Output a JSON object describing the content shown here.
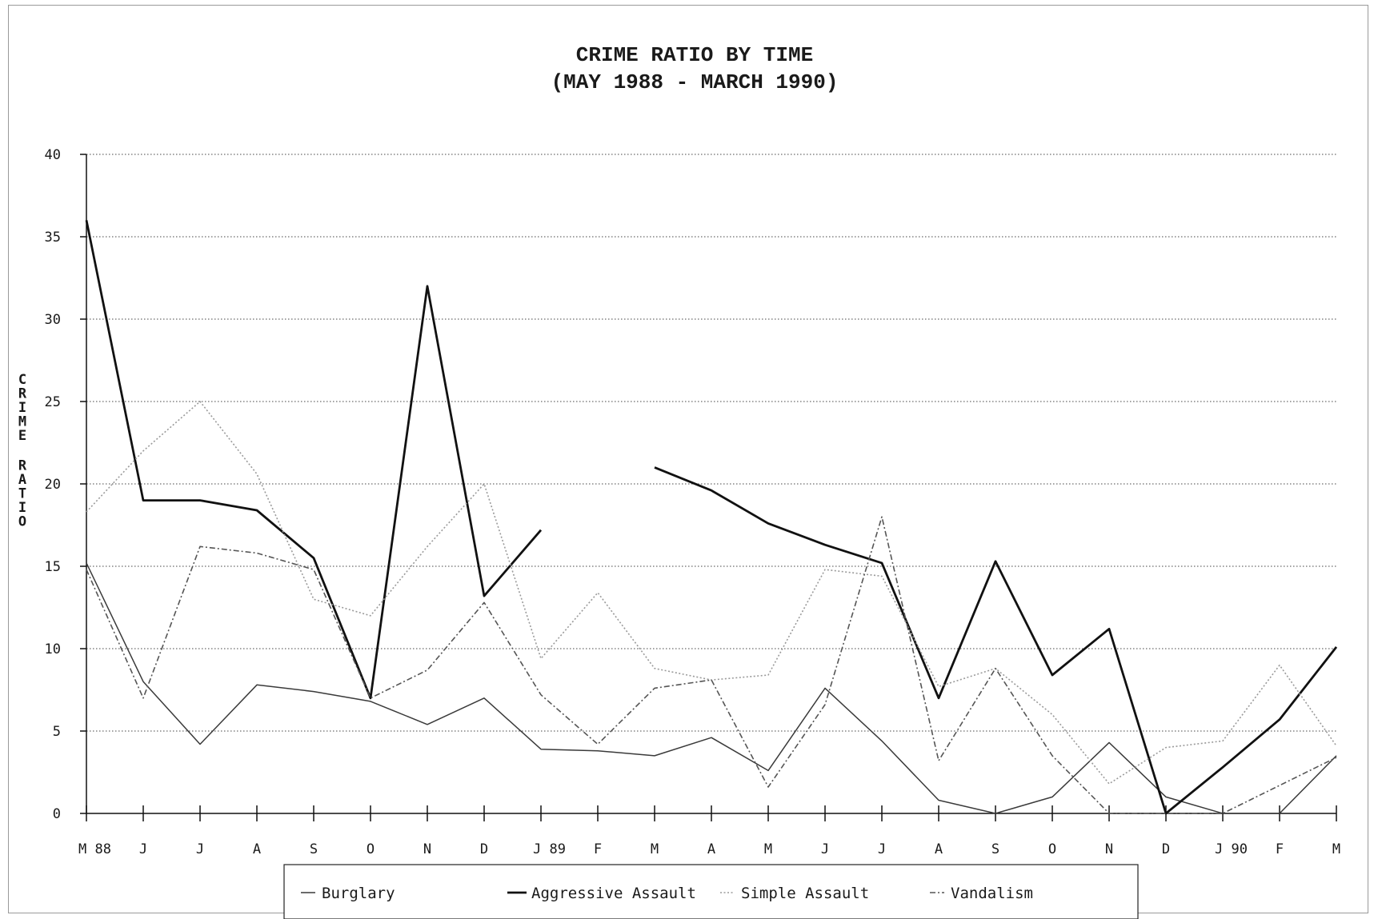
{
  "chart_data": {
    "type": "line",
    "title": "CRIME RATIO BY TIME",
    "subtitle": "(MAY 1988 - MARCH 1990)",
    "xlabel": "",
    "ylabel": "CRIME RATIO",
    "categories": [
      "M 88",
      "J",
      "J",
      "A",
      "S",
      "O",
      "N",
      "D",
      "J 89",
      "F",
      "M",
      "A",
      "M",
      "J",
      "J",
      "A",
      "S",
      "O",
      "N",
      "D",
      "J 90",
      "F",
      "M"
    ],
    "yticks": [
      "0",
      "5",
      "10",
      "15",
      "20",
      "25",
      "30",
      "35",
      "40"
    ],
    "ylim": [
      0,
      40
    ],
    "grid": true,
    "legend_position": "bottom",
    "series": [
      {
        "name": "Burglary",
        "color": "#3a3a3a",
        "style": "solid-thin",
        "values": [
          15.2,
          8.0,
          4.2,
          7.8,
          7.4,
          6.8,
          5.4,
          7.0,
          3.9,
          3.8,
          3.5,
          4.6,
          2.6,
          7.6,
          4.4,
          0.8,
          0.0,
          1.0,
          4.3,
          1.0,
          0.0,
          0.0,
          3.5
        ]
      },
      {
        "name": "Aggressive Assault",
        "color": "#111111",
        "style": "solid-thick",
        "values": [
          36.0,
          19.0,
          19.0,
          18.4,
          15.5,
          7.0,
          32.0,
          13.2,
          17.2,
          null,
          21.0,
          19.6,
          17.6,
          16.3,
          15.2,
          7.0,
          15.3,
          8.4,
          11.2,
          0.0,
          2.8,
          5.7,
          10.1
        ]
      },
      {
        "name": "Simple Assault",
        "color": "#9a9a9a",
        "style": "dotted",
        "values": [
          18.3,
          22.0,
          25.0,
          20.6,
          13.0,
          12.0,
          16.2,
          20.0,
          9.4,
          13.4,
          8.8,
          8.1,
          8.4,
          14.8,
          14.4,
          7.7,
          8.8,
          6.0,
          1.8,
          4.0,
          4.4,
          9.0,
          4.1
        ]
      },
      {
        "name": "Vandalism",
        "color": "#555555",
        "style": "dash-dot",
        "values": [
          14.8,
          7.0,
          16.2,
          15.8,
          14.8,
          7.0,
          8.7,
          12.8,
          7.2,
          4.2,
          7.6,
          8.1,
          1.6,
          6.6,
          18.0,
          3.2,
          8.8,
          3.5,
          0.0,
          0.0,
          0.0,
          1.7,
          3.4
        ]
      }
    ]
  }
}
